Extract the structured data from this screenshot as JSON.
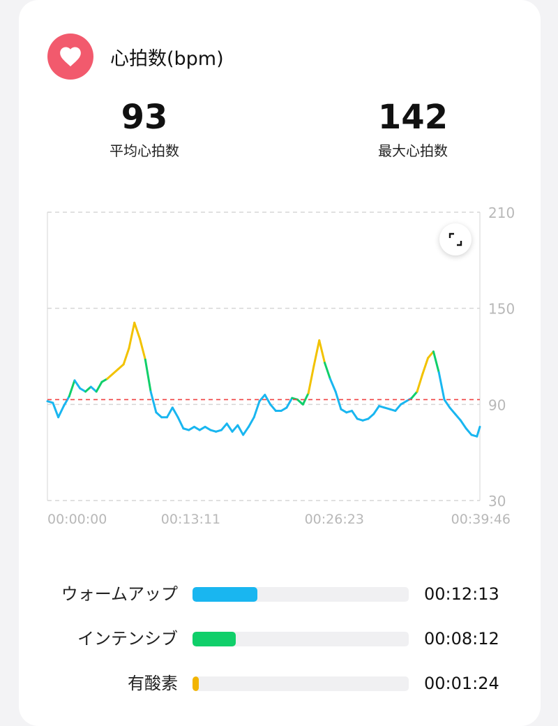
{
  "header": {
    "title": "心拍数(bpm)",
    "icon": "heart-icon",
    "accent": "#f25a6d"
  },
  "stats": {
    "average": {
      "value": "93",
      "label": "平均心拍数"
    },
    "max": {
      "value": "142",
      "label": "最大心拍数"
    }
  },
  "chart_data": {
    "type": "line",
    "y_ticks": [
      "210",
      "150",
      "90",
      "30"
    ],
    "ylim": [
      30,
      210
    ],
    "x_ticks": [
      "00:00:00",
      "00:13:11",
      "00:26:23",
      "00:39:46"
    ],
    "xlim_minutes": [
      0,
      39.77
    ],
    "average_line": {
      "value": 93,
      "color": "#f04040",
      "style": "dashed"
    },
    "zone_colors": {
      "warmup": "#19b6f0",
      "intensive": "#10cf6a",
      "aerobic": "#f2c200"
    },
    "x": [
      0,
      0.5,
      1,
      1.5,
      2,
      2.5,
      3,
      3.5,
      4,
      4.5,
      5,
      5.5,
      6,
      6.5,
      7,
      7.5,
      8,
      8.5,
      9,
      9.5,
      10,
      10.5,
      11,
      11.5,
      12,
      12.5,
      13,
      13.5,
      14,
      14.5,
      15,
      15.5,
      16,
      16.5,
      17,
      17.5,
      18,
      18.5,
      19,
      19.5,
      20,
      20.5,
      21,
      21.5,
      22,
      22.5,
      23,
      23.5,
      24,
      24.5,
      25,
      25.5,
      26,
      26.5,
      27,
      27.5,
      28,
      28.5,
      29,
      29.5,
      30,
      30.5,
      31,
      31.5,
      32,
      32.5,
      33,
      33.5,
      34,
      34.5,
      35,
      35.5,
      36,
      36.5,
      37,
      37.5,
      38,
      38.5,
      39,
      39.5,
      39.77
    ],
    "y": [
      92,
      91,
      82,
      89,
      95,
      105,
      100,
      98,
      101,
      98,
      104,
      106,
      109,
      112,
      115,
      125,
      141,
      131,
      118,
      98,
      85,
      82,
      82,
      88,
      82,
      75,
      74,
      76,
      74,
      76,
      74,
      73,
      74,
      78,
      73,
      77,
      71,
      76,
      82,
      92,
      96,
      90,
      86,
      86,
      88,
      94,
      93,
      90,
      97,
      114,
      130,
      116,
      106,
      98,
      87,
      85,
      86,
      81,
      80,
      81,
      84,
      89,
      88,
      87,
      86,
      90,
      92,
      94,
      98,
      109,
      119,
      123,
      110,
      93,
      88,
      84,
      80,
      75,
      71,
      70,
      76
    ],
    "zones": [
      "w",
      "w",
      "w",
      "w",
      "w",
      "i",
      "w",
      "w",
      "i",
      "w",
      "i",
      "i",
      "a",
      "a",
      "a",
      "a",
      "a",
      "a",
      "a",
      "i",
      "w",
      "w",
      "w",
      "w",
      "w",
      "w",
      "w",
      "w",
      "w",
      "w",
      "w",
      "w",
      "w",
      "w",
      "w",
      "w",
      "w",
      "w",
      "w",
      "w",
      "w",
      "w",
      "w",
      "w",
      "w",
      "w",
      "i",
      "i",
      "i",
      "a",
      "a",
      "a",
      "i",
      "w",
      "w",
      "w",
      "w",
      "w",
      "w",
      "w",
      "w",
      "w",
      "w",
      "w",
      "w",
      "w",
      "w",
      "w",
      "i",
      "a",
      "a",
      "a",
      "i",
      "w",
      "w",
      "w",
      "w",
      "w",
      "w",
      "w",
      "w"
    ]
  },
  "chart_ui": {
    "expand_icon": "expand-icon"
  },
  "zones": [
    {
      "label": "ウォームアップ",
      "time": "00:12:13",
      "fraction": 0.3,
      "color": "#19b6f0"
    },
    {
      "label": "インテンシブ",
      "time": "00:08:12",
      "fraction": 0.2,
      "color": "#10cf6a"
    },
    {
      "label": "有酸素",
      "time": "00:01:24",
      "fraction": 0.03,
      "color": "#f2b400"
    }
  ]
}
